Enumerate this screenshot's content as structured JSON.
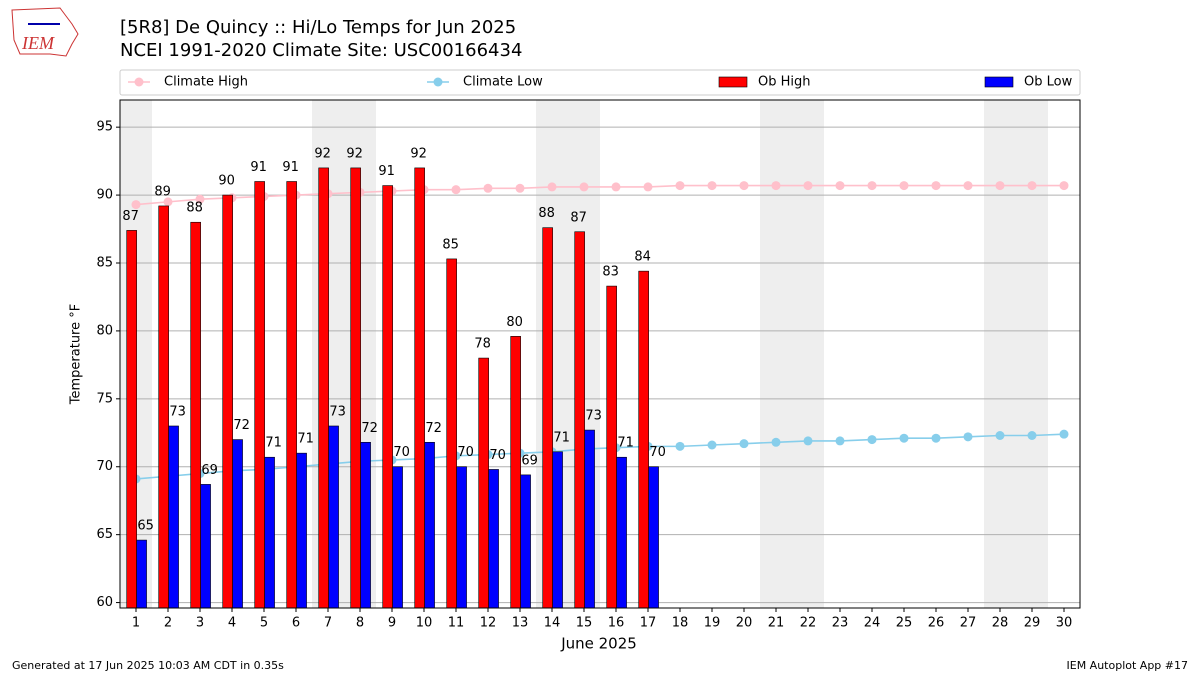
{
  "logo": "IEM",
  "footer": {
    "left": "Generated at 17 Jun 2025 10:03 AM CDT in 0.35s",
    "right": "IEM Autoplot App #17"
  },
  "chart_data": {
    "type": "bar",
    "title": "[5R8] De Quincy :: Hi/Lo Temps for Jun 2025",
    "subtitle": "NCEI 1991-2020 Climate Site: USC00166434",
    "x_label": "June 2025",
    "y_label": "Temperature °F",
    "x": [
      1,
      2,
      3,
      4,
      5,
      6,
      7,
      8,
      9,
      10,
      11,
      12,
      13,
      14,
      15,
      16,
      17,
      18,
      19,
      20,
      21,
      22,
      23,
      24,
      25,
      26,
      27,
      28,
      29,
      30
    ],
    "xlim": [
      0.5,
      30.5
    ],
    "xticks": [
      1,
      2,
      3,
      4,
      5,
      6,
      7,
      8,
      9,
      10,
      11,
      12,
      13,
      14,
      15,
      16,
      17,
      18,
      19,
      20,
      21,
      22,
      23,
      24,
      25,
      26,
      27,
      28,
      29,
      30
    ],
    "ylim": [
      59.6,
      97
    ],
    "yticks": [
      60,
      65,
      70,
      75,
      80,
      85,
      90,
      95
    ],
    "grid": true,
    "series": [
      {
        "name": "Climate High",
        "type": "line",
        "color": "#ffc0cb",
        "values": [
          89.3,
          89.5,
          89.7,
          89.8,
          89.9,
          90.0,
          90.1,
          90.2,
          90.3,
          90.4,
          90.4,
          90.5,
          90.5,
          90.6,
          90.6,
          90.6,
          90.6,
          90.7,
          90.7,
          90.7,
          90.7,
          90.7,
          90.7,
          90.7,
          90.7,
          90.7,
          90.7,
          90.7,
          90.7,
          90.7
        ]
      },
      {
        "name": "Climate Low",
        "type": "line",
        "color": "#87ceeb",
        "values": [
          69.1,
          69.3,
          69.5,
          69.7,
          69.8,
          70.0,
          70.2,
          70.4,
          70.5,
          70.6,
          70.8,
          70.9,
          71.0,
          71.1,
          71.3,
          71.4,
          71.5,
          71.5,
          71.6,
          71.7,
          71.8,
          71.9,
          71.9,
          72.0,
          72.1,
          72.1,
          72.2,
          72.3,
          72.3,
          72.4
        ]
      },
      {
        "name": "Ob High",
        "type": "bar",
        "color": "#ff0000",
        "values": [
          87.4,
          89.2,
          88.0,
          90.0,
          91.0,
          91.0,
          92.0,
          92.0,
          90.7,
          92.0,
          85.3,
          78.0,
          79.6,
          87.6,
          87.3,
          83.3,
          84.4,
          null,
          null,
          null,
          null,
          null,
          null,
          null,
          null,
          null,
          null,
          null,
          null,
          null
        ],
        "value_labels": [
          "87",
          "89",
          "88",
          "90",
          "91",
          "91",
          "92",
          "92",
          "91",
          "92",
          "85",
          "78",
          "80",
          "88",
          "87",
          "83",
          "84",
          null,
          null,
          null,
          null,
          null,
          null,
          null,
          null,
          null,
          null,
          null,
          null,
          null
        ]
      },
      {
        "name": "Ob Low",
        "type": "bar",
        "color": "#0000ff",
        "values": [
          64.6,
          73.0,
          68.7,
          72.0,
          70.7,
          71.0,
          73.0,
          71.8,
          70.0,
          71.8,
          70.0,
          69.8,
          69.4,
          71.1,
          72.7,
          70.7,
          70.0,
          null,
          null,
          null,
          null,
          null,
          null,
          null,
          null,
          null,
          null,
          null,
          null,
          null
        ],
        "value_labels": [
          "65",
          "73",
          "69",
          "72",
          "71",
          "71",
          "73",
          "72",
          "70",
          "72",
          "70",
          "70",
          "69",
          "71",
          "73",
          "71",
          "70",
          null,
          null,
          null,
          null,
          null,
          null,
          null,
          null,
          null,
          null,
          null,
          null,
          null
        ]
      }
    ]
  }
}
